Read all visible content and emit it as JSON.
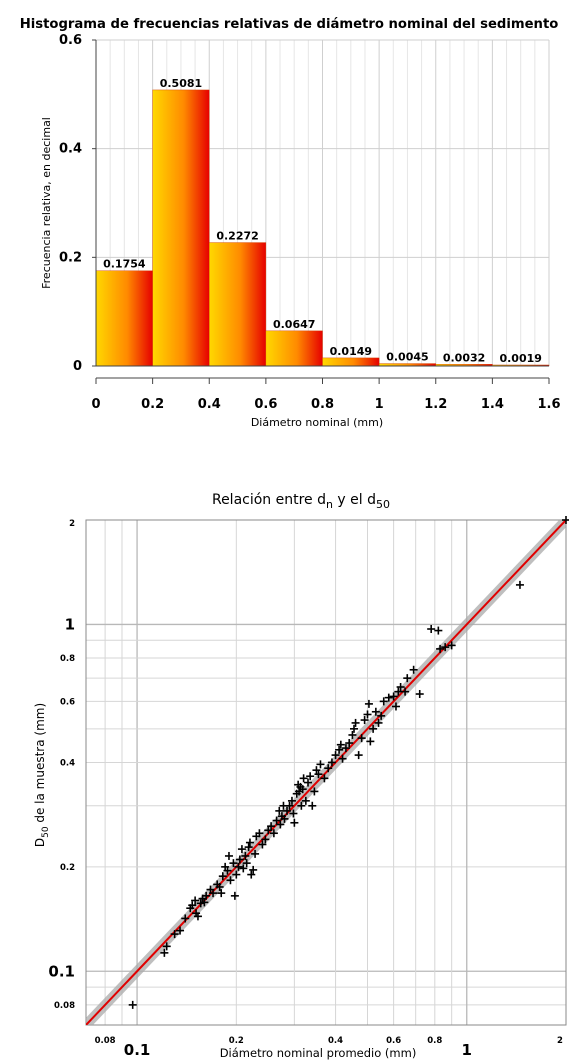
{
  "chart_data": [
    {
      "type": "bar",
      "title": "Histograma de frecuencias relativas de diámetro nominal del sedimento",
      "xlabel": "Diámetro nominal (mm)",
      "ylabel": "Frecuencia relativa, en decimal",
      "bin_edges": [
        0,
        0.2,
        0.4,
        0.6,
        0.8,
        1.0,
        1.2,
        1.4,
        1.6
      ],
      "values": [
        0.1754,
        0.5081,
        0.2272,
        0.0647,
        0.0149,
        0.0045,
        0.0032,
        0.0019
      ],
      "value_labels": [
        "0.1754",
        "0.5081",
        "0.2272",
        "0.0647",
        "0.0149",
        "0.0045",
        "0.0032",
        "0.0019"
      ],
      "xlim": [
        0,
        1.6
      ],
      "ylim": [
        0,
        0.6
      ],
      "x_ticks": [
        0,
        0.2,
        0.4,
        0.6,
        0.8,
        1,
        1.2,
        1.4,
        1.6
      ],
      "x_tick_labels": [
        "0",
        "0.2",
        "0.4",
        "0.6",
        "0.8",
        "1",
        "1.2",
        "1.4",
        "1.6"
      ],
      "y_ticks": [
        0,
        0.2,
        0.4,
        0.6
      ],
      "y_tick_labels": [
        "0",
        "0.2",
        "0.4",
        "0.6"
      ],
      "grid": true,
      "colors": {
        "gradient_start": "#ffd800",
        "gradient_mid": "#ff8a00",
        "gradient_end": "#e60000",
        "grid": "#cfcfcf"
      }
    },
    {
      "type": "scatter",
      "title_parts": [
        "Relación entre d",
        "n",
        " y el d",
        "50"
      ],
      "xlabel": "Diámetro nominal promedio (mm)",
      "ylabel_parts": [
        "D",
        "50",
        " de la muestra (mm)"
      ],
      "x_scale": "log",
      "y_scale": "log",
      "xlim": [
        0.07,
        2
      ],
      "ylim": [
        0.07,
        2
      ],
      "x_tick_values": [
        0.08,
        0.1,
        0.2,
        0.4,
        0.6,
        0.8,
        1,
        2
      ],
      "x_tick_labels": [
        "0.08",
        "0.1",
        "0.2",
        "0.4",
        "0.6",
        "0.8",
        "1",
        "2"
      ],
      "y_tick_values": [
        0.08,
        0.1,
        0.2,
        0.4,
        0.6,
        0.8,
        1,
        2
      ],
      "y_tick_labels": [
        "0.08",
        "0.1",
        "0.2",
        "0.4",
        "0.6",
        "0.8",
        "1",
        "2"
      ],
      "major_ticks": [
        0.1,
        1
      ],
      "fit_line": {
        "x": [
          0.07,
          2
        ],
        "y": [
          0.07,
          2
        ]
      },
      "marker": "+",
      "grid": true,
      "colors": {
        "points": "#000000",
        "fit_line": "#e00000",
        "fit_band": "#a9a9a9",
        "grid": "#d6d6d6"
      },
      "points": [
        [
          0.097,
          0.08
        ],
        [
          0.121,
          0.113
        ],
        [
          0.123,
          0.118
        ],
        [
          0.13,
          0.128
        ],
        [
          0.135,
          0.131
        ],
        [
          0.14,
          0.142
        ],
        [
          0.145,
          0.152
        ],
        [
          0.147,
          0.155
        ],
        [
          0.15,
          0.16
        ],
        [
          0.151,
          0.147
        ],
        [
          0.153,
          0.144
        ],
        [
          0.156,
          0.157
        ],
        [
          0.158,
          0.162
        ],
        [
          0.16,
          0.158
        ],
        [
          0.162,
          0.165
        ],
        [
          0.167,
          0.172
        ],
        [
          0.17,
          0.168
        ],
        [
          0.175,
          0.178
        ],
        [
          0.178,
          0.175
        ],
        [
          0.18,
          0.168
        ],
        [
          0.182,
          0.188
        ],
        [
          0.185,
          0.2
        ],
        [
          0.188,
          0.195
        ],
        [
          0.19,
          0.215
        ],
        [
          0.192,
          0.183
        ],
        [
          0.196,
          0.205
        ],
        [
          0.198,
          0.165
        ],
        [
          0.2,
          0.19
        ],
        [
          0.203,
          0.2
        ],
        [
          0.205,
          0.21
        ],
        [
          0.208,
          0.225
        ],
        [
          0.21,
          0.198
        ],
        [
          0.213,
          0.215
        ],
        [
          0.215,
          0.205
        ],
        [
          0.218,
          0.228
        ],
        [
          0.22,
          0.235
        ],
        [
          0.222,
          0.19
        ],
        [
          0.225,
          0.196
        ],
        [
          0.228,
          0.218
        ],
        [
          0.23,
          0.245
        ],
        [
          0.235,
          0.25
        ],
        [
          0.24,
          0.232
        ],
        [
          0.245,
          0.24
        ],
        [
          0.25,
          0.255
        ],
        [
          0.255,
          0.262
        ],
        [
          0.26,
          0.25
        ],
        [
          0.265,
          0.272
        ],
        [
          0.27,
          0.29
        ],
        [
          0.272,
          0.265
        ],
        [
          0.275,
          0.28
        ],
        [
          0.278,
          0.3
        ],
        [
          0.28,
          0.275
        ],
        [
          0.285,
          0.29
        ],
        [
          0.29,
          0.3
        ],
        [
          0.295,
          0.31
        ],
        [
          0.298,
          0.285
        ],
        [
          0.3,
          0.268
        ],
        [
          0.305,
          0.325
        ],
        [
          0.308,
          0.345
        ],
        [
          0.31,
          0.33
        ],
        [
          0.313,
          0.34
        ],
        [
          0.315,
          0.3
        ],
        [
          0.318,
          0.335
        ],
        [
          0.32,
          0.36
        ],
        [
          0.325,
          0.31
        ],
        [
          0.33,
          0.35
        ],
        [
          0.335,
          0.365
        ],
        [
          0.34,
          0.3
        ],
        [
          0.345,
          0.33
        ],
        [
          0.35,
          0.38
        ],
        [
          0.355,
          0.37
        ],
        [
          0.36,
          0.395
        ],
        [
          0.37,
          0.36
        ],
        [
          0.38,
          0.385
        ],
        [
          0.39,
          0.4
        ],
        [
          0.4,
          0.42
        ],
        [
          0.41,
          0.435
        ],
        [
          0.415,
          0.45
        ],
        [
          0.42,
          0.41
        ],
        [
          0.43,
          0.44
        ],
        [
          0.44,
          0.455
        ],
        [
          0.45,
          0.48
        ],
        [
          0.455,
          0.5
        ],
        [
          0.46,
          0.52
        ],
        [
          0.47,
          0.42
        ],
        [
          0.48,
          0.47
        ],
        [
          0.49,
          0.53
        ],
        [
          0.5,
          0.55
        ],
        [
          0.505,
          0.59
        ],
        [
          0.51,
          0.46
        ],
        [
          0.52,
          0.5
        ],
        [
          0.53,
          0.56
        ],
        [
          0.54,
          0.52
        ],
        [
          0.55,
          0.545
        ],
        [
          0.56,
          0.6
        ],
        [
          0.58,
          0.615
        ],
        [
          0.6,
          0.62
        ],
        [
          0.61,
          0.58
        ],
        [
          0.62,
          0.64
        ],
        [
          0.63,
          0.66
        ],
        [
          0.65,
          0.64
        ],
        [
          0.66,
          0.7
        ],
        [
          0.69,
          0.74
        ],
        [
          0.72,
          0.63
        ],
        [
          0.78,
          0.97
        ],
        [
          0.82,
          0.96
        ],
        [
          0.83,
          0.85
        ],
        [
          0.86,
          0.86
        ],
        [
          0.9,
          0.87
        ],
        [
          1.45,
          1.3
        ],
        [
          2.0,
          2.0
        ]
      ]
    }
  ]
}
